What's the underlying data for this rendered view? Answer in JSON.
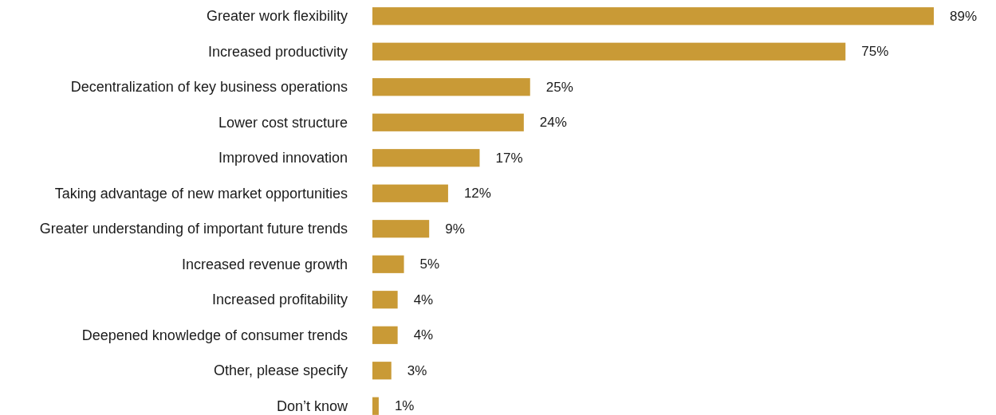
{
  "chart_data": {
    "type": "bar",
    "orientation": "horizontal",
    "categories": [
      "Greater work flexibility",
      "Increased productivity",
      "Decentralization of key business operations",
      "Lower cost structure",
      "Improved innovation",
      "Taking advantage of new market opportunities",
      "Greater understanding of important future trends",
      "Increased revenue growth",
      "Increased profitability",
      "Deepened knowledge of consumer trends",
      "Other, please specify",
      "Don’t know"
    ],
    "values": [
      89,
      75,
      25,
      24,
      17,
      12,
      9,
      5,
      4,
      4,
      3,
      1
    ],
    "value_labels": [
      "89%",
      "75%",
      "25%",
      "24%",
      "17%",
      "12%",
      "9%",
      "5%",
      "4%",
      "4%",
      "3%",
      "1%"
    ],
    "color": "#c99a36"
  }
}
